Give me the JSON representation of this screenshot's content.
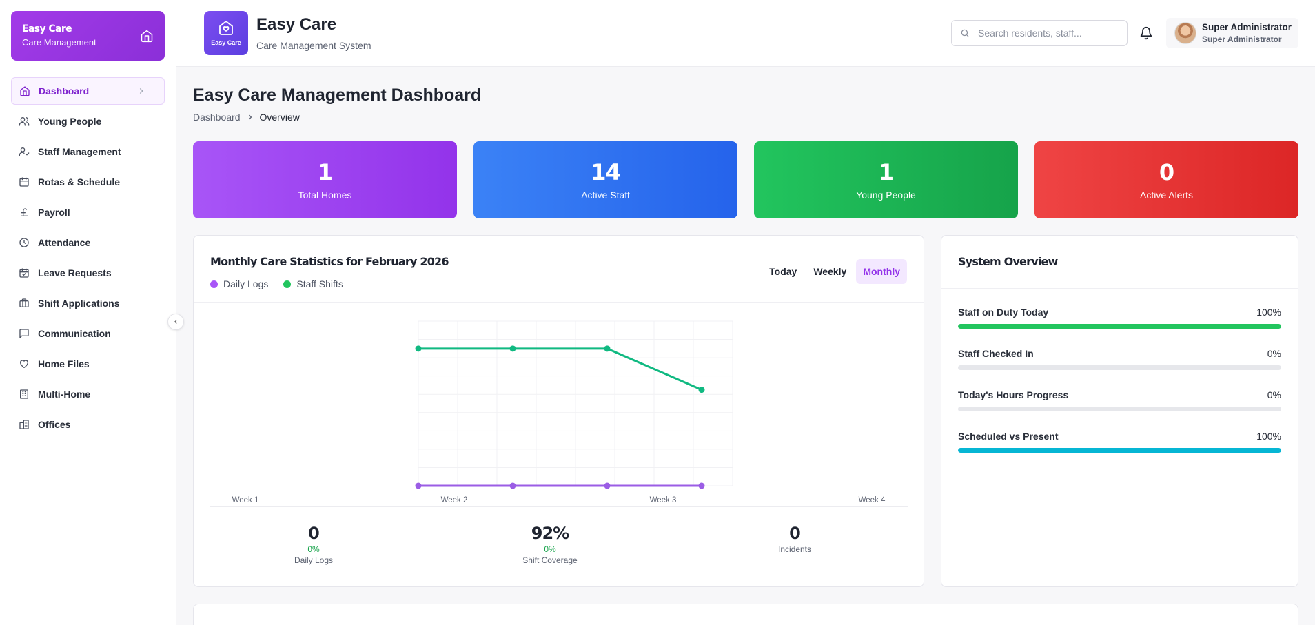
{
  "sidebar": {
    "brand_title": "Easy Care",
    "brand_subtitle": "Care Management",
    "items": [
      {
        "label": "Dashboard",
        "icon": "home-icon"
      },
      {
        "label": "Young People",
        "icon": "users-icon"
      },
      {
        "label": "Staff Management",
        "icon": "user-cog-icon"
      },
      {
        "label": "Rotas & Schedule",
        "icon": "calendar-icon"
      },
      {
        "label": "Payroll",
        "icon": "pound-icon"
      },
      {
        "label": "Attendance",
        "icon": "clock-icon"
      },
      {
        "label": "Leave Requests",
        "icon": "calendar-check-icon"
      },
      {
        "label": "Shift Applications",
        "icon": "briefcase-icon"
      },
      {
        "label": "Communication",
        "icon": "message-icon"
      },
      {
        "label": "Home Files",
        "icon": "heart-icon"
      },
      {
        "label": "Multi-Home",
        "icon": "building-icon"
      },
      {
        "label": "Offices",
        "icon": "office-icon"
      }
    ],
    "active_index": 0
  },
  "header": {
    "logo_text": "Easy Care",
    "title": "Easy Care",
    "subtitle": "Care Management System",
    "search_placeholder": "Search residents, staff...",
    "user_name": "Super Administrator",
    "user_role": "Super Administrator"
  },
  "page": {
    "title": "Easy Care Management Dashboard",
    "breadcrumb": [
      "Dashboard",
      "Overview"
    ]
  },
  "stats": [
    {
      "value": "1",
      "label": "Total Homes"
    },
    {
      "value": "14",
      "label": "Active Staff"
    },
    {
      "value": "1",
      "label": "Young People"
    },
    {
      "value": "0",
      "label": "Active Alerts"
    }
  ],
  "chart_card": {
    "title": "Monthly Care Statistics for February 2026",
    "tabs": [
      "Today",
      "Weekly",
      "Monthly"
    ],
    "active_tab": 2,
    "footer": [
      {
        "value": "0",
        "pct": "0%",
        "label": "Daily Logs"
      },
      {
        "value": "92%",
        "pct": "0%",
        "label": "Shift Coverage"
      },
      {
        "value": "0",
        "pct": "",
        "label": "Incidents"
      }
    ]
  },
  "chart_data": {
    "type": "line",
    "x_labels": [
      "Week 1",
      "Week 2",
      "Week 3",
      "Week 4"
    ],
    "series": [
      {
        "name": "Daily Logs",
        "color": "#9b5de5",
        "values": [
          0,
          0,
          0,
          0
        ]
      },
      {
        "name": "Staff Shifts",
        "color": "#10b981",
        "values": [
          100,
          100,
          100,
          70
        ]
      }
    ],
    "ylim": [
      0,
      120
    ],
    "grid": true,
    "legend": "top-left"
  },
  "system_overview": {
    "title": "System Overview",
    "rows": [
      {
        "label": "Staff on Duty Today",
        "value": "100%",
        "fraction": 1.0,
        "color": "#22c55e"
      },
      {
        "label": "Staff Checked In",
        "value": "0%",
        "fraction": 0.0,
        "color": "#22c55e"
      },
      {
        "label": "Today's Hours Progress",
        "value": "0%",
        "fraction": 0.0,
        "color": "#22c55e"
      },
      {
        "label": "Scheduled vs Present",
        "value": "100%",
        "fraction": 1.0,
        "color": "#06b6d4"
      }
    ]
  }
}
